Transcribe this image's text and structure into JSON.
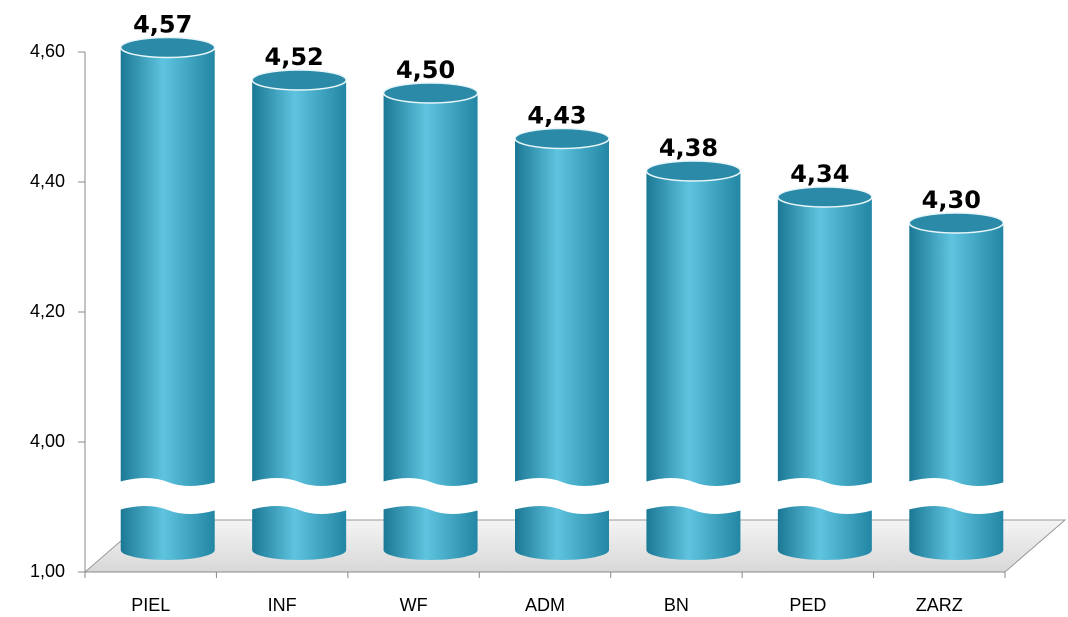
{
  "chart_data": {
    "type": "bar",
    "categories": [
      "PIEL",
      "INF",
      "WF",
      "ADM",
      "BN",
      "PED",
      "ZARZ"
    ],
    "values": [
      4.57,
      4.52,
      4.5,
      4.43,
      4.38,
      4.34,
      4.3
    ],
    "value_labels": [
      "4,57",
      "4,52",
      "4,50",
      "4,43",
      "4,38",
      "4,34",
      "4,30"
    ],
    "color": "#3fa9c9",
    "ylim": [
      1,
      4.6
    ],
    "yticks": [
      {
        "value": 1,
        "label": "1,00"
      },
      {
        "value": 4,
        "label": "4,00"
      },
      {
        "value": 4.2,
        "label": "4,20"
      },
      {
        "value": 4.4,
        "label": "4,40"
      },
      {
        "value": 4.6,
        "label": "4,60"
      }
    ]
  }
}
